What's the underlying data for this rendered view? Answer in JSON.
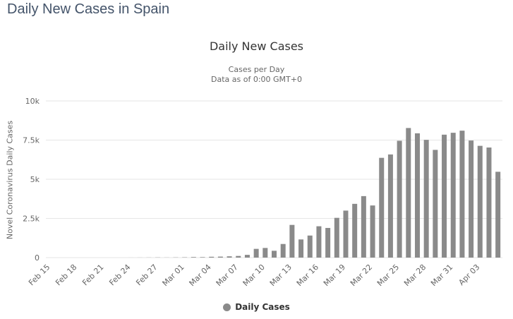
{
  "page": {
    "title": "Daily New Cases in Spain"
  },
  "colors": {
    "page_title": "#44546a",
    "chart_title": "#333333",
    "subtitle": "#666666",
    "legend_text": "#333333",
    "series": "#8a8a8a"
  },
  "chart_data": {
    "type": "bar",
    "title": "Daily New Cases",
    "subtitle_line1": "Cases per Day",
    "subtitle_line2": "Data as of 0:00 GMT+0",
    "ylabel": "Novel Coronavirus Daily Cases",
    "xlabel": "",
    "ylim": [
      0,
      10000
    ],
    "grid": true,
    "grid_color": "#e6e6e6",
    "axis_text_color": "#666666",
    "bar_color": "#8a8a8a",
    "label_every_n": 3,
    "legend": {
      "position": "bottom",
      "items": [
        "Daily Cases"
      ]
    },
    "yticks": [
      {
        "value": 0,
        "label": "0"
      },
      {
        "value": 2500,
        "label": "2.5k"
      },
      {
        "value": 5000,
        "label": "5k"
      },
      {
        "value": 7500,
        "label": "7.5k"
      },
      {
        "value": 10000,
        "label": "10k"
      }
    ],
    "categories": [
      "Feb 15",
      "Feb 16",
      "Feb 17",
      "Feb 18",
      "Feb 19",
      "Feb 20",
      "Feb 21",
      "Feb 22",
      "Feb 23",
      "Feb 24",
      "Feb 25",
      "Feb 26",
      "Feb 27",
      "Feb 28",
      "Feb 29",
      "Mar 01",
      "Mar 02",
      "Mar 03",
      "Mar 04",
      "Mar 05",
      "Mar 06",
      "Mar 07",
      "Mar 08",
      "Mar 09",
      "Mar 10",
      "Mar 11",
      "Mar 12",
      "Mar 13",
      "Mar 14",
      "Mar 15",
      "Mar 16",
      "Mar 17",
      "Mar 18",
      "Mar 19",
      "Mar 20",
      "Mar 21",
      "Mar 22",
      "Mar 23",
      "Mar 24",
      "Mar 25",
      "Mar 26",
      "Mar 27",
      "Mar 28",
      "Mar 29",
      "Mar 30",
      "Mar 31",
      "Apr 01",
      "Apr 02",
      "Apr 03",
      "Apr 04",
      "Apr 05"
    ],
    "values": [
      0,
      0,
      0,
      0,
      0,
      0,
      0,
      0,
      0,
      2,
      4,
      7,
      12,
      7,
      13,
      20,
      36,
      31,
      54,
      63,
      81,
      105,
      175,
      557,
      615,
      435,
      869,
      2086,
      1159,
      1407,
      2000,
      1893,
      2538,
      3000,
      3431,
      3925,
      3327,
      6368,
      6584,
      7457,
      8271,
      7933,
      7516,
      6875,
      7846,
      7967,
      8102,
      7472,
      7134,
      7026,
      5478
    ]
  }
}
